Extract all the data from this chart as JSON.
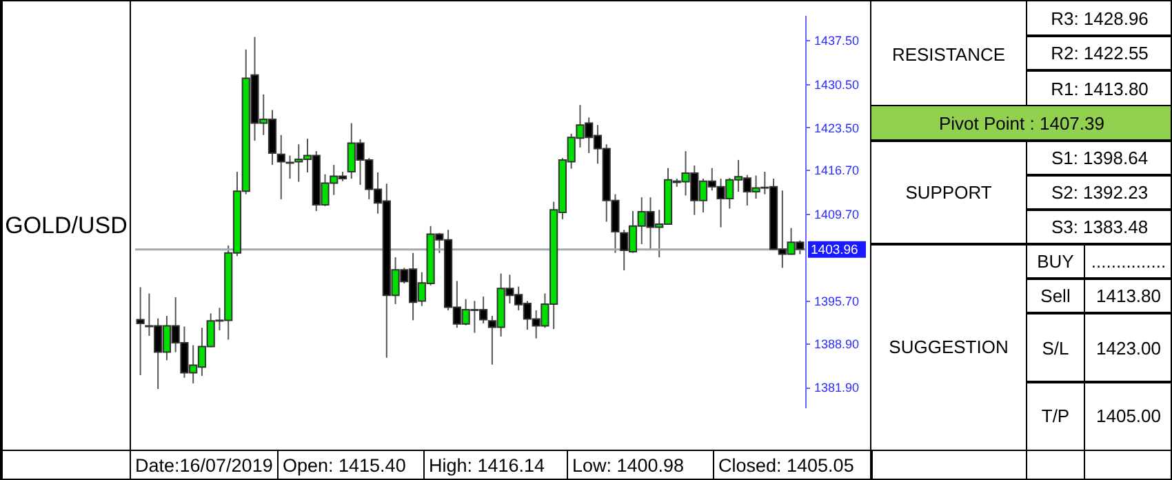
{
  "chart_data": [
    {
      "type": "candlestick",
      "title": "GOLD/USD",
      "categories": [
        null,
        null,
        null,
        null,
        null,
        null,
        null,
        null,
        null,
        null,
        null,
        null,
        null,
        null,
        null,
        null,
        null,
        null,
        null,
        null,
        null,
        null,
        null,
        null,
        null,
        null,
        null,
        null,
        null,
        null,
        null,
        null,
        null,
        null,
        null,
        null,
        null,
        null,
        null,
        null,
        null,
        null,
        null,
        null,
        null,
        null,
        null,
        null,
        null,
        null,
        null,
        null,
        null,
        null,
        null,
        null,
        null,
        null,
        null,
        null,
        null,
        null,
        null,
        null,
        null,
        null,
        null,
        null,
        null,
        null,
        null,
        null,
        null,
        null,
        null,
        null
      ],
      "ohlc": [
        [
          1392.7,
          1397.9,
          1383.8,
          1392.1
        ],
        [
          1391.7,
          1396.9,
          1390.1,
          1391.6
        ],
        [
          1391.7,
          1392.9,
          1381.6,
          1387.5
        ],
        [
          1387.5,
          1393.3,
          1386.2,
          1391.7
        ],
        [
          1391.7,
          1396.3,
          1387.5,
          1389.0
        ],
        [
          1389.0,
          1391.6,
          1383.4,
          1384.2
        ],
        [
          1384.2,
          1388.6,
          1382.5,
          1385.4
        ],
        [
          1385.1,
          1391.4,
          1383.7,
          1388.4
        ],
        [
          1388.4,
          1393.7,
          1388.3,
          1392.5
        ],
        [
          1392.6,
          1394.6,
          1391.0,
          1392.5
        ],
        [
          1392.6,
          1404.6,
          1389.5,
          1403.4
        ],
        [
          1403.4,
          1416.4,
          1402.9,
          1413.3
        ],
        [
          1413.3,
          1436.0,
          1412.8,
          1431.4
        ],
        [
          1431.9,
          1438.0,
          1421.4,
          1424.2
        ],
        [
          1424.2,
          1428.8,
          1422.3,
          1424.8
        ],
        [
          1424.8,
          1426.3,
          1417.5,
          1419.4
        ],
        [
          1419.2,
          1422.3,
          1412.0,
          1418.0
        ],
        [
          1417.9,
          1419.0,
          1415.3,
          1417.8
        ],
        [
          1418.0,
          1420.8,
          1414.8,
          1418.4
        ],
        [
          1418.4,
          1421.7,
          1416.3,
          1419.0
        ],
        [
          1419.0,
          1419.7,
          1410.1,
          1411.1
        ],
        [
          1411.1,
          1416.0,
          1410.9,
          1414.6
        ],
        [
          1414.6,
          1417.5,
          1412.7,
          1415.7
        ],
        [
          1415.7,
          1416.4,
          1414.9,
          1415.3
        ],
        [
          1416.4,
          1424.2,
          1415.3,
          1421.0
        ],
        [
          1421.0,
          1421.6,
          1414.3,
          1418.3
        ],
        [
          1418.3,
          1418.6,
          1412.0,
          1413.6
        ],
        [
          1413.6,
          1416.3,
          1409.7,
          1411.4
        ],
        [
          1411.7,
          1414.5,
          1386.6,
          1396.6
        ],
        [
          1396.6,
          1402.7,
          1395.2,
          1400.7
        ],
        [
          1400.7,
          1401.0,
          1398.5,
          1398.8
        ],
        [
          1400.8,
          1403.4,
          1392.6,
          1395.5
        ],
        [
          1395.7,
          1400.3,
          1394.9,
          1398.6
        ],
        [
          1398.5,
          1407.7,
          1398.2,
          1406.4
        ],
        [
          1406.4,
          1406.6,
          1403.4,
          1405.5
        ],
        [
          1405.5,
          1407.1,
          1394.2,
          1394.7
        ],
        [
          1394.7,
          1398.9,
          1391.4,
          1392.0
        ],
        [
          1392.0,
          1396.0,
          1391.8,
          1394.3
        ],
        [
          1394.3,
          1395.7,
          1390.6,
          1394.2
        ],
        [
          1394.3,
          1396.4,
          1392.1,
          1392.7
        ],
        [
          1392.5,
          1393.3,
          1385.5,
          1391.5
        ],
        [
          1391.5,
          1400.1,
          1390.0,
          1397.7
        ],
        [
          1397.7,
          1399.9,
          1395.3,
          1396.6
        ],
        [
          1396.7,
          1398.0,
          1394.2,
          1395.1
        ],
        [
          1395.3,
          1395.7,
          1391.1,
          1392.8
        ],
        [
          1392.8,
          1394.2,
          1389.7,
          1391.7
        ],
        [
          1391.7,
          1396.9,
          1391.4,
          1395.2
        ],
        [
          1395.2,
          1411.6,
          1391.2,
          1410.3
        ],
        [
          1409.9,
          1418.6,
          1408.8,
          1418.3
        ],
        [
          1418.0,
          1422.5,
          1416.9,
          1421.9
        ],
        [
          1421.8,
          1427.1,
          1420.3,
          1423.9
        ],
        [
          1424.2,
          1425.1,
          1419.4,
          1421.9
        ],
        [
          1422.2,
          1423.9,
          1417.7,
          1420.1
        ],
        [
          1420.1,
          1420.8,
          1408.4,
          1411.8
        ],
        [
          1411.8,
          1412.8,
          1403.4,
          1406.8
        ],
        [
          1406.6,
          1407.1,
          1400.6,
          1403.8
        ],
        [
          1403.6,
          1410.1,
          1403.4,
          1407.7
        ],
        [
          1407.7,
          1412.3,
          1404.8,
          1410.0
        ],
        [
          1410.0,
          1412.3,
          1404.0,
          1407.5
        ],
        [
          1407.5,
          1410.3,
          1402.7,
          1408.0
        ],
        [
          1408.0,
          1417.0,
          1407.9,
          1415.1
        ],
        [
          1414.9,
          1415.3,
          1414.0,
          1414.7
        ],
        [
          1414.8,
          1419.7,
          1412.6,
          1416.2
        ],
        [
          1416.2,
          1417.4,
          1409.5,
          1411.8
        ],
        [
          1411.8,
          1415.3,
          1409.9,
          1414.9
        ],
        [
          1414.9,
          1417.0,
          1413.4,
          1414.0
        ],
        [
          1414.0,
          1415.3,
          1407.5,
          1412.1
        ],
        [
          1412.1,
          1415.4,
          1410.5,
          1415.1
        ],
        [
          1415.1,
          1418.3,
          1413.2,
          1415.6
        ],
        [
          1415.4,
          1415.9,
          1411.0,
          1413.2
        ],
        [
          1413.2,
          1415.8,
          1412.1,
          1413.8
        ],
        [
          1413.9,
          1416.4,
          1412.8,
          1413.8
        ],
        [
          1414.0,
          1415.3,
          1403.8,
          1404.0
        ],
        [
          1404.0,
          1413.4,
          1401.0,
          1403.2
        ],
        [
          1403.2,
          1407.4,
          1403.1,
          1405.1
        ],
        [
          1405.1,
          1405.4,
          1403.2,
          1404.0
        ]
      ],
      "colors": [
        "#000000",
        "#000000",
        "#000000",
        "#00e000",
        "#000000",
        "#000000",
        "#00e000",
        "#00e000",
        "#00e000",
        "#000000",
        "#00e000",
        "#00e000",
        "#00e000",
        "#000000",
        "#00e000",
        "#000000",
        "#000000",
        "#000000",
        "#00e000",
        "#00e000",
        "#000000",
        "#00e000",
        "#00e000",
        "#000000",
        "#00e000",
        "#000000",
        "#000000",
        "#000000",
        "#000000",
        "#00e000",
        "#000000",
        "#000000",
        "#00e000",
        "#00e000",
        "#000000",
        "#000000",
        "#000000",
        "#00e000",
        "#000000",
        "#000000",
        "#000000",
        "#00e000",
        "#000000",
        "#000000",
        "#000000",
        "#000000",
        "#00e000",
        "#00e000",
        "#00e000",
        "#00e000",
        "#00e000",
        "#000000",
        "#000000",
        "#000000",
        "#000000",
        "#000000",
        "#00e000",
        "#00e000",
        "#000000",
        "#00e000",
        "#00e000",
        "#000000",
        "#00e000",
        "#000000",
        "#00e000",
        "#000000",
        "#000000",
        "#00e000",
        "#00e000",
        "#000000",
        "#00e000",
        "#000000",
        "#000000",
        "#000000",
        "#00e000",
        "#000000"
      ],
      "ylim": [
        1378.5,
        1441.5
      ],
      "yticks": [
        {
          "value": 1381.9,
          "label": "1381.90"
        },
        {
          "value": 1388.9,
          "label": "1388.90"
        },
        {
          "value": 1395.7,
          "label": "1395.70"
        },
        {
          "value": 1409.7,
          "label": "1409.70"
        },
        {
          "value": 1416.7,
          "label": "1416.70"
        },
        {
          "value": 1423.5,
          "label": "1423.50"
        },
        {
          "value": 1430.5,
          "label": "1430.50"
        },
        {
          "value": 1437.5,
          "label": "1437.50"
        }
      ],
      "ref_lines": [
        {
          "axis": "y",
          "value": 1403.96,
          "label": "1403.96"
        }
      ],
      "tick_labels": "y",
      "annotations": [
        "Date:16/07/2019",
        "Open: 1415.40",
        "High: 1416.14",
        "Low: 1400.98",
        "Closed: 1405.05"
      ]
    },
    {
      "type": "other",
      "annotations": [
        "RESISTANCE",
        "R3: 1428.96",
        "R2: 1422.55",
        "R1: 1413.80",
        "Pivot Point : 1407.39",
        "SUPPORT",
        "S1: 1398.64",
        "S2: 1392.23",
        "S3: 1383.48",
        "SUGGESTION",
        "BUY",
        "...............",
        "Sell",
        "1413.80",
        "S/L",
        "1423.00",
        "T/P",
        "1405.00"
      ]
    }
  ]
}
